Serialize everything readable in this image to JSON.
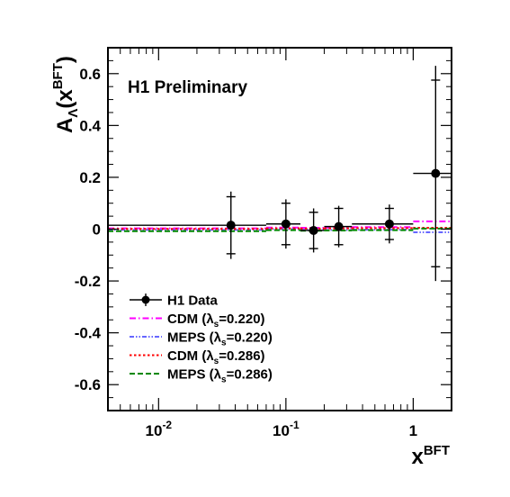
{
  "chart_data": {
    "type": "scatter",
    "annotation": "H1 Preliminary",
    "x_scale": "log",
    "xlim": [
      0.004,
      2.0
    ],
    "ylim": [
      -0.7,
      0.7
    ],
    "x_ticks": [
      {
        "value": 0.01,
        "base": "10",
        "exp": "-2"
      },
      {
        "value": 0.1,
        "base": "10",
        "exp": "-1"
      },
      {
        "value": 1,
        "base": "1",
        "exp": ""
      }
    ],
    "y_ticks": [
      {
        "value": -0.6,
        "label": "-0.6"
      },
      {
        "value": -0.4,
        "label": "-0.4"
      },
      {
        "value": -0.2,
        "label": "-0.2"
      },
      {
        "value": 0,
        "label": "0"
      },
      {
        "value": 0.2,
        "label": "0.2"
      },
      {
        "value": 0.4,
        "label": "0.4"
      },
      {
        "value": 0.6,
        "label": "0.6"
      }
    ],
    "xlabel": {
      "main": "x",
      "sup": "BFT"
    },
    "ylabel": {
      "main": "A",
      "sub": "Λ",
      "open": "(x",
      "sup": "BFT",
      "close": ")"
    },
    "data": {
      "name": "H1 Data",
      "color": "#000000",
      "points": [
        {
          "x": 0.037,
          "y": 0.015,
          "x_low": 0.004,
          "x_high": 0.07,
          "err_total": 0.13,
          "err_stat": 0.11
        },
        {
          "x": 0.1,
          "y": 0.02,
          "x_low": 0.07,
          "x_high": 0.13,
          "err_total": 0.095,
          "err_stat": 0.08
        },
        {
          "x": 0.165,
          "y": -0.005,
          "x_low": 0.13,
          "x_high": 0.2,
          "err_total": 0.085,
          "err_stat": 0.07
        },
        {
          "x": 0.26,
          "y": 0.01,
          "x_low": 0.2,
          "x_high": 0.33,
          "err_total": 0.08,
          "err_stat": 0.07
        },
        {
          "x": 0.65,
          "y": 0.02,
          "x_low": 0.33,
          "x_high": 1.0,
          "err_total": 0.075,
          "err_stat": 0.06
        },
        {
          "x": 1.5,
          "y": 0.215,
          "x_low": 1.0,
          "x_high": 2.0,
          "err_total": 0.415,
          "err_stat": 0.36
        }
      ]
    },
    "series": [
      {
        "name_parts": {
          "main": "CDM (λ",
          "sub": "s",
          "tail": "=0.220)"
        },
        "color": "#ff00ff",
        "dash": "7,3,1.5,3",
        "segments": [
          {
            "x0": 0.004,
            "x1": 0.07,
            "y": 0.003
          },
          {
            "x0": 0.07,
            "x1": 0.13,
            "y": 0.006
          },
          {
            "x0": 0.13,
            "x1": 0.2,
            "y": 0.005
          },
          {
            "x0": 0.2,
            "x1": 0.33,
            "y": 0.006
          },
          {
            "x0": 0.33,
            "x1": 1.0,
            "y": 0.008
          },
          {
            "x0": 1.0,
            "x1": 2.0,
            "y": 0.03
          }
        ]
      },
      {
        "name_parts": {
          "main": "MEPS (λ",
          "sub": "s",
          "tail": "=0.220)"
        },
        "color": "#6666ff",
        "dash": "5,2,1.5,2,1.5,2",
        "segments": [
          {
            "x0": 0.004,
            "x1": 0.07,
            "y": -0.003
          },
          {
            "x0": 0.07,
            "x1": 0.13,
            "y": 0.0
          },
          {
            "x0": 0.13,
            "x1": 0.2,
            "y": -0.002
          },
          {
            "x0": 0.2,
            "x1": 0.33,
            "y": -0.003
          },
          {
            "x0": 0.33,
            "x1": 1.0,
            "y": -0.002
          },
          {
            "x0": 1.0,
            "x1": 2.0,
            "y": -0.012
          }
        ]
      },
      {
        "name_parts": {
          "main": "CDM (λ",
          "sub": "s",
          "tail": "=0.286)"
        },
        "color": "#ff0000",
        "dash": "2.5,2.5",
        "segments": [
          {
            "x0": 0.004,
            "x1": 0.07,
            "y": 0.001
          },
          {
            "x0": 0.07,
            "x1": 0.13,
            "y": 0.003
          },
          {
            "x0": 0.13,
            "x1": 0.2,
            "y": 0.002
          },
          {
            "x0": 0.2,
            "x1": 0.33,
            "y": 0.003
          },
          {
            "x0": 0.33,
            "x1": 1.0,
            "y": 0.004
          },
          {
            "x0": 1.0,
            "x1": 2.0,
            "y": 0.005
          }
        ]
      },
      {
        "name_parts": {
          "main": "MEPS (λ",
          "sub": "s",
          "tail": "=0.286)"
        },
        "color": "#008800",
        "dash": "6,3",
        "segments": [
          {
            "x0": 0.004,
            "x1": 0.07,
            "y": -0.008
          },
          {
            "x0": 0.07,
            "x1": 0.13,
            "y": -0.004
          },
          {
            "x0": 0.13,
            "x1": 0.2,
            "y": -0.006
          },
          {
            "x0": 0.2,
            "x1": 0.33,
            "y": -0.005
          },
          {
            "x0": 0.33,
            "x1": 1.0,
            "y": -0.004
          },
          {
            "x0": 1.0,
            "x1": 2.0,
            "y": 0.002
          }
        ]
      }
    ],
    "legend_position": "bottom-left",
    "grid": false
  }
}
